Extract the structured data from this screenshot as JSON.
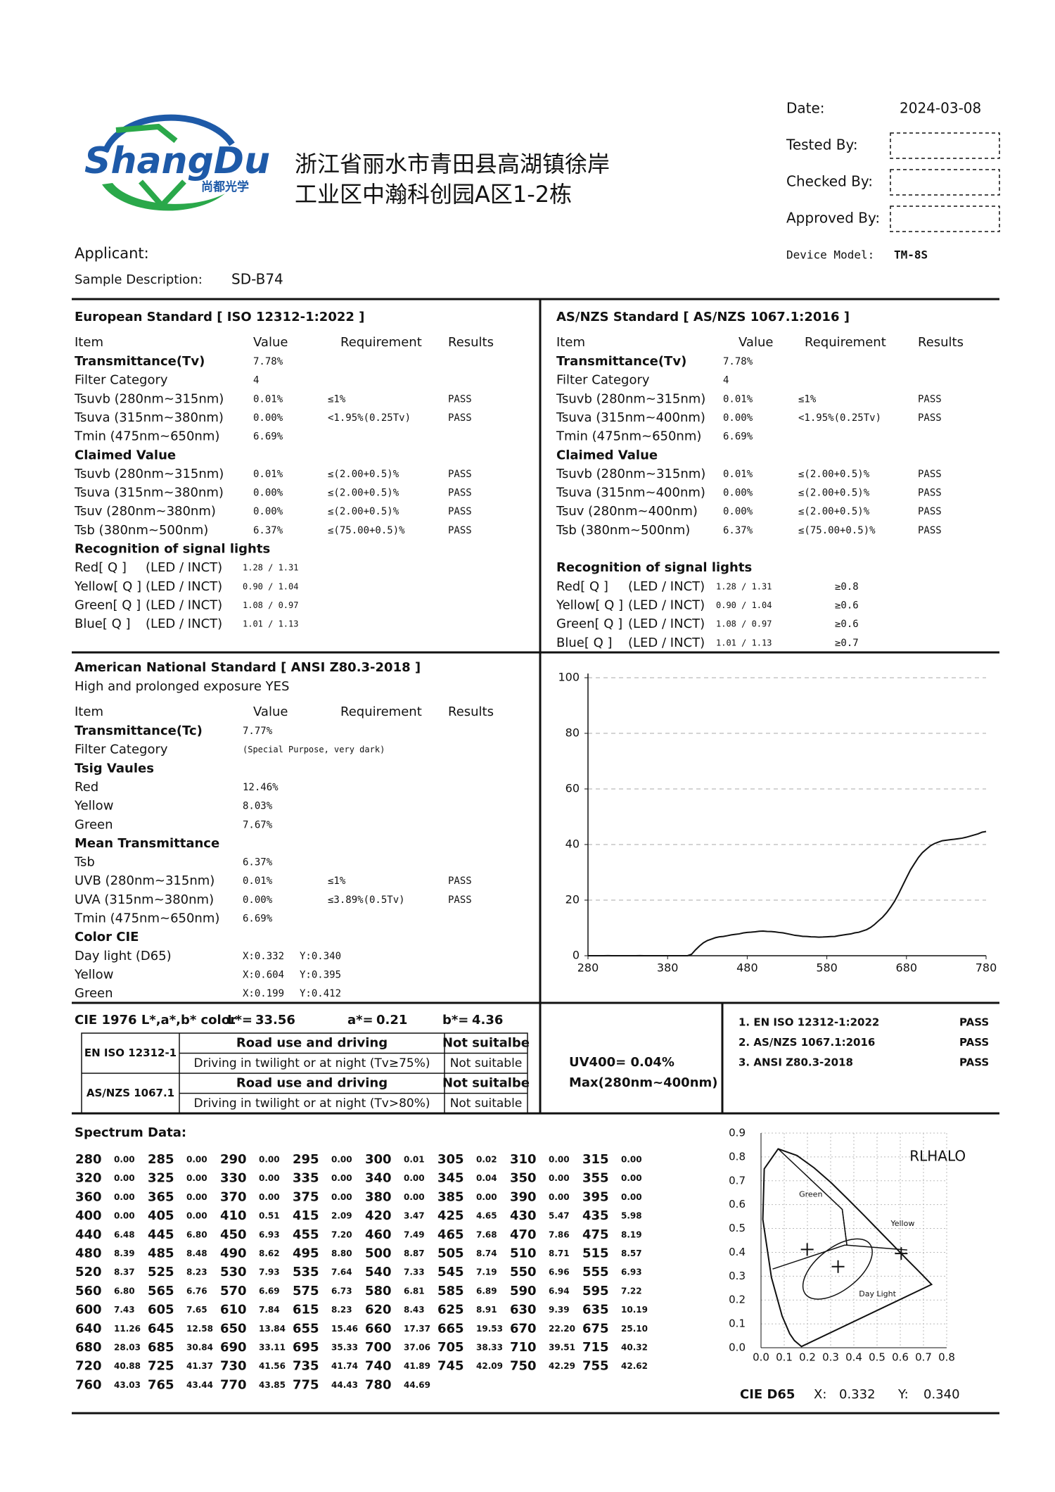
{
  "header": {
    "logo": "ShangDu",
    "logo_sub": "尚都光学",
    "address": [
      "浙江省丽水市青田县高湖镇徐岸",
      "工业区中瀚科创园A区1-2栋"
    ],
    "date_label": "Date:",
    "date": "2024-03-08",
    "tested_label": "Tested By:",
    "checked_label": "Checked By:",
    "approved_label": "Approved By:",
    "applicant_label": "Applicant:",
    "sample_label": "Sample Description:",
    "sample": "SD-B74",
    "device_label": "Device Model:",
    "device": "TM-8S"
  },
  "eu": {
    "title": "European Standard [ ISO 12312-1:2022 ]",
    "columns": [
      "Item",
      "Value",
      "Requirement",
      "Results"
    ],
    "rows": [
      {
        "item": "Transmittance(Tv)",
        "value": "7.78%",
        "bold": true
      },
      {
        "item": "Filter Category",
        "value": "4"
      },
      {
        "item": "Tsuvb (280nm~315nm)",
        "value": "0.01%",
        "requirement": "≤1%",
        "result": "PASS"
      },
      {
        "item": "Tsuva (315nm~380nm)",
        "value": "0.00%",
        "requirement": "<1.95%(0.25Tv)",
        "result": "PASS"
      },
      {
        "item": "Tmin (475nm~650nm)",
        "value": "6.69%"
      },
      {
        "item": "Claimed Value",
        "bold": true
      },
      {
        "item": "Tsuvb (280nm~315nm)",
        "value": "0.01%",
        "requirement": "≤(2.00+0.5)%",
        "result": "PASS"
      },
      {
        "item": "Tsuva (315nm~380nm)",
        "value": "0.00%",
        "requirement": "≤(2.00+0.5)%",
        "result": "PASS"
      },
      {
        "item": "Tsuv  (280nm~380nm)",
        "value": "0.00%",
        "requirement": "≤(2.00+0.5)%",
        "result": "PASS"
      },
      {
        "item": "Tsb   (380nm~500nm)",
        "value": "6.37%",
        "requirement": "≤(75.00+0.5)%",
        "result": "PASS"
      },
      {
        "item": "Recognition of signal lights",
        "bold": true
      },
      {
        "item": "Red[ Q ]",
        "sub": "(LED / INCT)",
        "value": "1.28  /  1.31"
      },
      {
        "item": "Yellow[ Q ]",
        "sub": "(LED / INCT)",
        "value": "0.90  /  1.04"
      },
      {
        "item": "Green[ Q ]",
        "sub": "(LED / INCT)",
        "value": "1.08  /  0.97"
      },
      {
        "item": "Blue[ Q ]",
        "sub": "(LED / INCT)",
        "value": "1.01  /  1.13"
      }
    ]
  },
  "asnzs": {
    "title": "AS/NZS Standard [ AS/NZS 1067.1:2016 ]",
    "columns": [
      "Item",
      "Value",
      "Requirement",
      "Results"
    ],
    "rows": [
      {
        "item": "Transmittance(Tv)",
        "value": "7.78%",
        "bold": true
      },
      {
        "item": "Filter Category",
        "value": "4"
      },
      {
        "item": "Tsuvb (280nm~315nm)",
        "value": "0.01%",
        "requirement": "≤1%",
        "result": "PASS"
      },
      {
        "item": "Tsuva (315nm~400nm)",
        "value": "0.00%",
        "requirement": "<1.95%(0.25Tv)",
        "result": "PASS"
      },
      {
        "item": "Tmin (475nm~650nm)",
        "value": "6.69%"
      },
      {
        "item": "Claimed Value",
        "bold": true
      },
      {
        "item": "Tsuvb (280nm~315nm)",
        "value": "0.01%",
        "requirement": "≤(2.00+0.5)%",
        "result": "PASS"
      },
      {
        "item": "Tsuva (315nm~400nm)",
        "value": "0.00%",
        "requirement": "≤(2.00+0.5)%",
        "result": "PASS"
      },
      {
        "item": "Tsuv  (280nm~400nm)",
        "value": "0.00%",
        "requirement": "≤(2.00+0.5)%",
        "result": "PASS"
      },
      {
        "item": "Tsb   (380nm~500nm)",
        "value": "6.37%",
        "requirement": "≤(75.00+0.5)%",
        "result": "PASS"
      },
      {
        "item": "Recognition of signal lights",
        "bold": true
      },
      {
        "item": "Red[ Q ]",
        "sub": "(LED / INCT)",
        "value": "1.28  /  1.31",
        "requirement": "≥0.8"
      },
      {
        "item": "Yellow[ Q ]",
        "sub": "(LED / INCT)",
        "value": "0.90  /  1.04",
        "requirement": "≥0.6"
      },
      {
        "item": "Green[ Q ]",
        "sub": "(LED / INCT)",
        "value": "1.08  /  0.97",
        "requirement": "≥0.6"
      },
      {
        "item": "Blue[ Q ]",
        "sub": "(LED / INCT)",
        "value": "1.01  /  1.13",
        "requirement": "≥0.7"
      }
    ]
  },
  "ansi": {
    "title": "American National Standard [ ANSI Z80.3-2018 ]",
    "subtitle": "High and prolonged exposure YES",
    "columns": [
      "Item",
      "Value",
      "Requirement",
      "Results"
    ],
    "rows": [
      {
        "item": "Transmittance(Tc)",
        "value": "7.77%",
        "bold": true
      },
      {
        "item": "Filter Category",
        "value": "(Special Purpose, very dark)"
      },
      {
        "item": "Tsig Vaules",
        "bold": true
      },
      {
        "item": "Red",
        "value": "12.46%"
      },
      {
        "item": "Yellow",
        "value": "8.03%"
      },
      {
        "item": "Green",
        "value": "7.67%"
      },
      {
        "item": "Mean Transmittance",
        "bold": true
      },
      {
        "item": "Tsb",
        "value": "6.37%"
      },
      {
        "item": "UVB (280nm~315nm)",
        "value": "0.01%",
        "requirement": "≤1%",
        "result": "PASS"
      },
      {
        "item": "UVA (315nm~380nm)",
        "value": "0.00%",
        "requirement": "≤3.89%(0.5Tv)",
        "result": "PASS"
      },
      {
        "item": "Tmin (475nm~650nm)",
        "value": "6.69%"
      },
      {
        "item": "Color CIE",
        "bold": true
      },
      {
        "item": "Day light  (D65)",
        "value": "X:0.332",
        "value2": "Y:0.340"
      },
      {
        "item": "Yellow",
        "value": "X:0.604",
        "value2": "Y:0.395"
      },
      {
        "item": "Green",
        "value": "X:0.199",
        "value2": "Y:0.412"
      }
    ]
  },
  "cie_color": {
    "label": "CIE 1976 L*,a*,b* color",
    "lab": [
      {
        "name": "L*=",
        "value": "33.56"
      },
      {
        "name": "a*=",
        "value": "0.21"
      },
      {
        "name": "b*=",
        "value": "4.36"
      }
    ]
  },
  "suitability": [
    {
      "standard": "EN ISO 12312-1",
      "rows": [
        [
          "Road use and driving",
          "Not suitalbe"
        ],
        [
          "Driving in twilight or at night  (Tv≥75%)",
          "Not suitable"
        ]
      ]
    },
    {
      "standard": "AS/NZS 1067.1",
      "rows": [
        [
          "Road use and driving",
          "Not suitalbe"
        ],
        [
          "Driving in twilight or at night  (Tv>80%)",
          "Not suitable"
        ]
      ]
    }
  ],
  "uv": {
    "line1": "UV400=  0.04%",
    "line2": "Max(280nm~400nm)"
  },
  "summary": [
    {
      "standard": "1. EN ISO 12312-1:2022",
      "result": "PASS"
    },
    {
      "standard": "2. AS/NZS 1067.1:2016",
      "result": "PASS"
    },
    {
      "standard": "3. ANSI Z80.3-2018",
      "result": "PASS"
    }
  ],
  "spectrum": {
    "title": "Spectrum Data:"
  },
  "cie_footer": {
    "label": "CIE D65",
    "x_label": "X:",
    "x": "0.332",
    "y_label": "Y:",
    "y": "0.340"
  },
  "chart_data": [
    {
      "type": "line",
      "color": "#111111",
      "xlim": [
        280,
        780
      ],
      "ylim": [
        0,
        100
      ],
      "xticks": [
        280,
        380,
        480,
        580,
        680,
        780
      ],
      "yticks": [
        0,
        20,
        40,
        60,
        80,
        100
      ],
      "grid": true,
      "x": [
        280,
        285,
        290,
        295,
        300,
        305,
        310,
        315,
        320,
        325,
        330,
        335,
        340,
        345,
        350,
        355,
        360,
        365,
        370,
        375,
        380,
        385,
        390,
        395,
        400,
        405,
        410,
        415,
        420,
        425,
        430,
        435,
        440,
        445,
        450,
        455,
        460,
        465,
        470,
        475,
        480,
        485,
        490,
        495,
        500,
        505,
        510,
        515,
        520,
        525,
        530,
        535,
        540,
        545,
        550,
        555,
        560,
        565,
        570,
        575,
        580,
        585,
        590,
        595,
        600,
        605,
        610,
        615,
        620,
        625,
        630,
        635,
        640,
        645,
        650,
        655,
        660,
        665,
        670,
        675,
        680,
        685,
        690,
        695,
        700,
        705,
        710,
        715,
        720,
        725,
        730,
        735,
        740,
        745,
        750,
        755,
        760,
        765,
        770,
        775,
        780
      ],
      "values": [
        0,
        0,
        0,
        0,
        0.01,
        0.02,
        0,
        0,
        0,
        0,
        0,
        0,
        0,
        0.04,
        0,
        0,
        0,
        0,
        0,
        0,
        0,
        0,
        0,
        0,
        0,
        0,
        0.51,
        2.09,
        3.47,
        4.65,
        5.47,
        5.98,
        6.48,
        6.8,
        6.93,
        7.2,
        7.49,
        7.68,
        7.86,
        8.19,
        8.39,
        8.48,
        8.62,
        8.8,
        8.87,
        8.74,
        8.71,
        8.57,
        8.37,
        8.23,
        7.93,
        7.64,
        7.33,
        7.19,
        6.96,
        6.93,
        6.8,
        6.76,
        6.69,
        6.73,
        6.81,
        6.89,
        6.94,
        7.22,
        7.43,
        7.65,
        7.84,
        8.23,
        8.43,
        8.91,
        9.39,
        10.19,
        11.26,
        12.58,
        13.84,
        15.46,
        17.37,
        19.53,
        22.2,
        25.1,
        28.03,
        30.84,
        33.11,
        35.33,
        37.06,
        38.33,
        39.51,
        40.32,
        40.88,
        41.37,
        41.56,
        41.74,
        41.89,
        42.09,
        42.29,
        42.62,
        43.03,
        43.44,
        43.85,
        44.43,
        44.69
      ],
      "value_labels": [
        "0.00",
        "0.00",
        "0.00",
        "0.00",
        "0.01",
        "0.02",
        "0.00",
        "0.00",
        "0.00",
        "0.00",
        "0.00",
        "0.00",
        "0.00",
        "0.04",
        "0.00",
        "0.00",
        "0.00",
        "0.00",
        "0.00",
        "0.00",
        "0.00",
        "0.00",
        "0.00",
        "0.00",
        "0.00",
        "0.00",
        "0.51",
        "2.09",
        "3.47",
        "4.65",
        "5.47",
        "5.98",
        "6.48",
        "6.80",
        "6.93",
        "7.20",
        "7.49",
        "7.68",
        "7.86",
        "8.19",
        "8.39",
        "8.48",
        "8.62",
        "8.80",
        "8.87",
        "8.74",
        "8.71",
        "8.57",
        "8.37",
        "8.23",
        "7.93",
        "7.64",
        "7.33",
        "7.19",
        "6.96",
        "6.93",
        "6.80",
        "6.76",
        "6.69",
        "6.73",
        "6.81",
        "6.89",
        "6.94",
        "7.22",
        "7.43",
        "7.65",
        "7.84",
        "8.23",
        "8.43",
        "8.91",
        "9.39",
        "10.19",
        "11.26",
        "12.58",
        "13.84",
        "15.46",
        "17.37",
        "19.53",
        "22.20",
        "25.10",
        "28.03",
        "30.84",
        "33.11",
        "35.33",
        "37.06",
        "38.33",
        "39.51",
        "40.32",
        "40.88",
        "41.37",
        "41.56",
        "41.74",
        "41.89",
        "42.09",
        "42.29",
        "42.62",
        "43.03",
        "43.44",
        "43.85",
        "44.43",
        "44.69"
      ]
    },
    {
      "type": "scatter",
      "annotation": "RLHALO",
      "color": "#111111",
      "xlim": [
        0,
        0.8
      ],
      "ylim": [
        0,
        0.9
      ],
      "xticks": [
        {
          "value": 0,
          "label": "0.0"
        },
        0.1,
        0.2,
        0.3,
        0.4,
        0.5,
        0.6,
        0.7,
        0.8
      ],
      "yticks": [
        {
          "value": 0,
          "label": "0.0"
        },
        0.1,
        0.2,
        0.3,
        0.4,
        0.5,
        0.6,
        0.7,
        0.8,
        0.9
      ],
      "grid": true,
      "series": [
        {
          "name": "Green",
          "x": [
            0.199
          ],
          "y": [
            0.412
          ]
        },
        {
          "name": "Yellow",
          "x": [
            0.604
          ],
          "y": [
            0.395
          ]
        },
        {
          "name": "Day Light",
          "x": [
            0.332
          ],
          "y": [
            0.34
          ]
        }
      ]
    }
  ]
}
